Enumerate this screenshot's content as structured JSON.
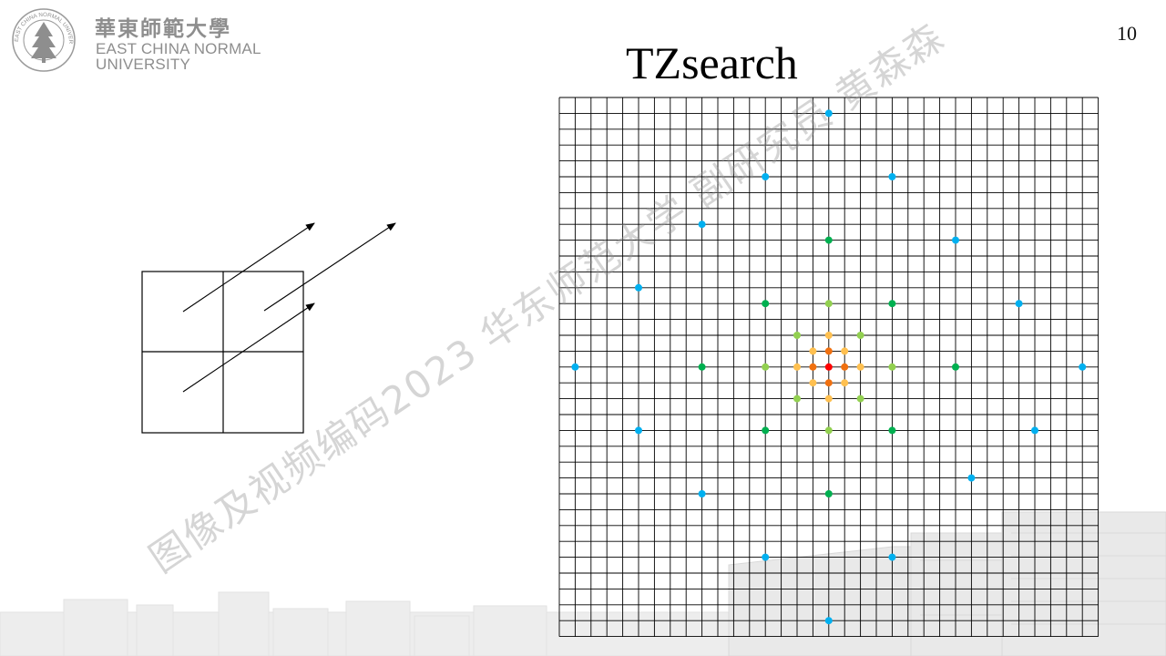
{
  "header": {
    "logo_cn": "華東師範大學",
    "logo_en_line1": "EAST CHINA NORMAL",
    "logo_en_line2": "UNIVERSITY",
    "logo_ring_text": "EAST CHINA NORMAL UNIVERSITY"
  },
  "page_number": "10",
  "title": "TZsearch",
  "watermark": "图像及视频编码2023 华东师范大学 副研究员 黄森森",
  "colors": {
    "grid_line": "#000000",
    "logo_gray": "#8e8e8e",
    "level_center": "#ff0000",
    "level_1": "#f07010",
    "level_2": "#ffc050",
    "level_4": "#92d050",
    "level_8": "#00b050",
    "level_16": "#00b0f0"
  },
  "grid": {
    "cells": 34
  },
  "search_points": [
    {
      "dx": 0,
      "dy": 0,
      "level": "center"
    },
    {
      "dx": 1,
      "dy": 0,
      "level": "1"
    },
    {
      "dx": -1,
      "dy": 0,
      "level": "1"
    },
    {
      "dx": 0,
      "dy": 1,
      "level": "1"
    },
    {
      "dx": 0,
      "dy": -1,
      "level": "1"
    },
    {
      "dx": 2,
      "dy": 0,
      "level": "2"
    },
    {
      "dx": -2,
      "dy": 0,
      "level": "2"
    },
    {
      "dx": 0,
      "dy": 2,
      "level": "2"
    },
    {
      "dx": 0,
      "dy": -2,
      "level": "2"
    },
    {
      "dx": 1,
      "dy": 1,
      "level": "2"
    },
    {
      "dx": -1,
      "dy": 1,
      "level": "2"
    },
    {
      "dx": 1,
      "dy": -1,
      "level": "2"
    },
    {
      "dx": -1,
      "dy": -1,
      "level": "2"
    },
    {
      "dx": 4,
      "dy": 0,
      "level": "4"
    },
    {
      "dx": -4,
      "dy": 0,
      "level": "4"
    },
    {
      "dx": 0,
      "dy": 4,
      "level": "4"
    },
    {
      "dx": 0,
      "dy": -4,
      "level": "4"
    },
    {
      "dx": 2,
      "dy": 2,
      "level": "4"
    },
    {
      "dx": -2,
      "dy": 2,
      "level": "4"
    },
    {
      "dx": 2,
      "dy": -2,
      "level": "4"
    },
    {
      "dx": -2,
      "dy": -2,
      "level": "4"
    },
    {
      "dx": 8,
      "dy": 0,
      "level": "8"
    },
    {
      "dx": -8,
      "dy": 0,
      "level": "8"
    },
    {
      "dx": 0,
      "dy": 8,
      "level": "8"
    },
    {
      "dx": 0,
      "dy": -8,
      "level": "8"
    },
    {
      "dx": 4,
      "dy": 4,
      "level": "8"
    },
    {
      "dx": -4,
      "dy": 4,
      "level": "8"
    },
    {
      "dx": 4,
      "dy": -4,
      "level": "8"
    },
    {
      "dx": -4,
      "dy": -4,
      "level": "8"
    },
    {
      "dx": 16,
      "dy": 0,
      "level": "16"
    },
    {
      "dx": -16,
      "dy": 0,
      "level": "16"
    },
    {
      "dx": 0,
      "dy": 16,
      "level": "16"
    },
    {
      "dx": 0,
      "dy": -16,
      "level": "16"
    },
    {
      "dx": 4,
      "dy": -12,
      "level": "16"
    },
    {
      "dx": -4,
      "dy": -12,
      "level": "16"
    },
    {
      "dx": 4,
      "dy": 12,
      "level": "16"
    },
    {
      "dx": -4,
      "dy": 12,
      "level": "16"
    },
    {
      "dx": -8,
      "dy": -9,
      "level": "16"
    },
    {
      "dx": 8,
      "dy": -8,
      "level": "16"
    },
    {
      "dx": -12,
      "dy": -5,
      "level": "16"
    },
    {
      "dx": 12,
      "dy": -4,
      "level": "16"
    },
    {
      "dx": -12,
      "dy": 4,
      "level": "16"
    },
    {
      "dx": 13,
      "dy": 4,
      "level": "16"
    },
    {
      "dx": -8,
      "dy": 8,
      "level": "16"
    },
    {
      "dx": 9,
      "dy": 7,
      "level": "16"
    }
  ]
}
